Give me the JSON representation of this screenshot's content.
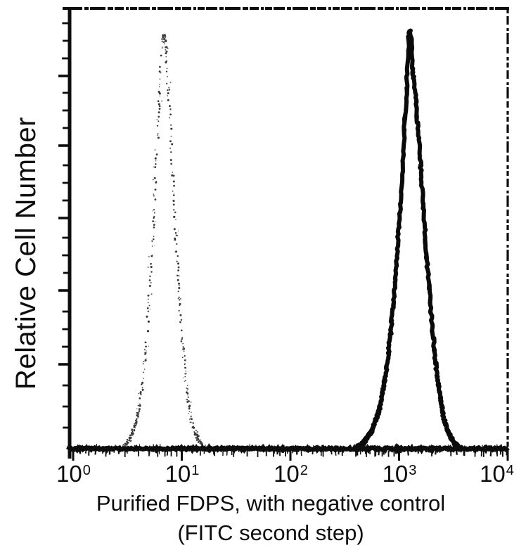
{
  "figure": {
    "y_axis_label": "Relative Cell Number",
    "caption_line1": "Purified FDPS, with negative control",
    "caption_line2": "(FITC second step)"
  },
  "colors": {
    "ink": "#0d0d0d",
    "solid_curve": "#0a0a0a",
    "dotted_curve": "#3a3a3a",
    "dotted_halo": "#6a6a6a",
    "background": "#ffffff"
  },
  "chart_data": {
    "type": "line",
    "subtype": "flow-cytometry-histogram",
    "title": "",
    "xlabel": "Purified FDPS, with negative control (FITC second step)",
    "ylabel": "Relative Cell Number",
    "x_scale": "log10",
    "x_range": [
      1,
      10000
    ],
    "x_range_log10": [
      0,
      4
    ],
    "y_axis": "relative cell number, unlabeled linear ticks, normalized 0-1",
    "grid": false,
    "legend": "none",
    "x_ticks": [
      {
        "base": "10",
        "exp": "0",
        "log10": 0
      },
      {
        "base": "10",
        "exp": "1",
        "log10": 1
      },
      {
        "base": "10",
        "exp": "2",
        "log10": 2
      },
      {
        "base": "10",
        "exp": "3",
        "log10": 3
      },
      {
        "base": "10",
        "exp": "4",
        "log10": 4
      }
    ],
    "x_minor_tick_mantissas": [
      2,
      3,
      4,
      5,
      6,
      7,
      8,
      9
    ],
    "series": [
      {
        "name": "Negative control (FITC second step only)",
        "style": "dotted",
        "peak_x": 6.8,
        "peak_log10": 0.835,
        "peak_rel_height": 0.95,
        "points_log10_vs_rel": [
          [
            0.45,
            0.0
          ],
          [
            0.52,
            0.02
          ],
          [
            0.58,
            0.06
          ],
          [
            0.63,
            0.13
          ],
          [
            0.675,
            0.24
          ],
          [
            0.715,
            0.4
          ],
          [
            0.755,
            0.6
          ],
          [
            0.785,
            0.75
          ],
          [
            0.815,
            0.9
          ],
          [
            0.835,
            0.95
          ],
          [
            0.855,
            0.9
          ],
          [
            0.885,
            0.78
          ],
          [
            0.915,
            0.63
          ],
          [
            0.945,
            0.48
          ],
          [
            0.98,
            0.33
          ],
          [
            1.02,
            0.2
          ],
          [
            1.06,
            0.11
          ],
          [
            1.1,
            0.055
          ],
          [
            1.15,
            0.022
          ],
          [
            1.21,
            0.0
          ]
        ]
      },
      {
        "name": "Purified FDPS",
        "style": "solid",
        "peak_x": 1260,
        "peak_log10": 3.1,
        "peak_rel_height": 0.95,
        "points_log10_vs_rel": [
          [
            2.6,
            0.0
          ],
          [
            2.68,
            0.015
          ],
          [
            2.75,
            0.04
          ],
          [
            2.82,
            0.09
          ],
          [
            2.88,
            0.17
          ],
          [
            2.93,
            0.28
          ],
          [
            2.975,
            0.42
          ],
          [
            3.015,
            0.56
          ],
          [
            3.045,
            0.7
          ],
          [
            3.065,
            0.8
          ],
          [
            3.08,
            0.87
          ],
          [
            3.09,
            0.95
          ],
          [
            3.11,
            0.95
          ],
          [
            3.12,
            0.87
          ],
          [
            3.14,
            0.83
          ],
          [
            3.17,
            0.74
          ],
          [
            3.21,
            0.6
          ],
          [
            3.25,
            0.45
          ],
          [
            3.29,
            0.32
          ],
          [
            3.33,
            0.21
          ],
          [
            3.37,
            0.13
          ],
          [
            3.41,
            0.07
          ],
          [
            3.455,
            0.035
          ],
          [
            3.505,
            0.015
          ],
          [
            3.56,
            0.0
          ]
        ]
      }
    ]
  }
}
